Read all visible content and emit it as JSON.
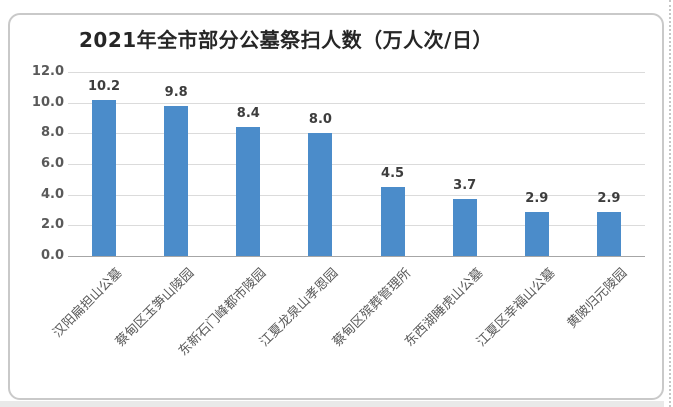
{
  "chart_data": {
    "type": "bar",
    "title": "2021年全市部分公墓祭扫人数（万人次/日）",
    "categories": [
      "汉阳扁担山公墓",
      "蔡甸区玉笋山陵园",
      "东新石门峰都市陵园",
      "江夏龙泉山孝恩园",
      "蔡甸区殡葬管理所",
      "东西湖睡虎山公墓",
      "江夏区幸福山公墓",
      "黄陂归元陵园"
    ],
    "values": [
      10.2,
      9.8,
      8.4,
      8.0,
      4.5,
      3.7,
      2.9,
      2.9
    ],
    "data_labels": [
      "10.2",
      "9.8",
      "8.4",
      "8.0",
      "4.5",
      "3.7",
      "2.9",
      "2.9"
    ],
    "y_ticks": [
      {
        "value": 12,
        "label": "12.0"
      },
      {
        "value": 10,
        "label": "10.0"
      },
      {
        "value": 8,
        "label": "8.0"
      },
      {
        "value": 6,
        "label": "6.0"
      },
      {
        "value": 4,
        "label": "4.0"
      },
      {
        "value": 2,
        "label": "2.0"
      },
      {
        "value": 0,
        "label": "0.0"
      }
    ],
    "ylim": [
      0,
      12
    ],
    "xlabel": "",
    "ylabel": "",
    "grid": true,
    "legend_position": "none",
    "colors": {
      "bar": "#4b8cca",
      "gridline": "#dbdbdb",
      "axis_line": "#a6a6a6",
      "title_text": "#262626",
      "tick_text": "#595959",
      "data_label_text": "#3d3d3d",
      "frame_border": "#c9c9c9",
      "background": "#ffffff"
    }
  }
}
